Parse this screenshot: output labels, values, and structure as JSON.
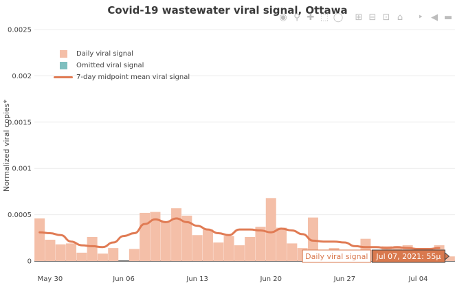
{
  "chart_data": {
    "type": "bar",
    "title": "Covid-19 wastewater viral signal, Ottawa",
    "ylabel": "Normalized viral copies*",
    "xlabel": "",
    "ylim": [
      0,
      0.0025
    ],
    "xlim": [
      "2021-05-29",
      "2021-07-07"
    ],
    "y_ticks": [
      {
        "value": 0,
        "label": "0"
      },
      {
        "value": 0.0005,
        "label": "0.0005"
      },
      {
        "value": 0.001,
        "label": "0.001"
      },
      {
        "value": 0.0015,
        "label": "0.0015"
      },
      {
        "value": 0.002,
        "label": "0.002"
      },
      {
        "value": 0.0025,
        "label": "0.0025"
      }
    ],
    "x_ticks": [
      {
        "date": "2021-05-30",
        "label": "May 30"
      },
      {
        "date": "2021-06-06",
        "label": "Jun 06"
      },
      {
        "date": "2021-06-13",
        "label": "Jun 13"
      },
      {
        "date": "2021-06-20",
        "label": "Jun 20"
      },
      {
        "date": "2021-06-27",
        "label": "Jun 27"
      },
      {
        "date": "2021-07-04",
        "label": "Jul 04"
      }
    ],
    "grid": true,
    "legend_position": "top-left",
    "colors": {
      "daily": "#f4bfa8",
      "omitted": "#7fbfbf",
      "mean": "#e07b54"
    },
    "series": [
      {
        "name": "Daily viral signal",
        "kind": "bar",
        "x": [
          "2021-05-29",
          "2021-05-30",
          "2021-05-31",
          "2021-06-01",
          "2021-06-02",
          "2021-06-03",
          "2021-06-04",
          "2021-06-05",
          "2021-06-07",
          "2021-06-08",
          "2021-06-09",
          "2021-06-10",
          "2021-06-11",
          "2021-06-12",
          "2021-06-13",
          "2021-06-14",
          "2021-06-15",
          "2021-06-16",
          "2021-06-17",
          "2021-06-18",
          "2021-06-19",
          "2021-06-20",
          "2021-06-21",
          "2021-06-22",
          "2021-06-23",
          "2021-06-24",
          "2021-06-25",
          "2021-06-26",
          "2021-06-27",
          "2021-06-28",
          "2021-06-29",
          "2021-06-30",
          "2021-07-01",
          "2021-07-02",
          "2021-07-03",
          "2021-07-04",
          "2021-07-05",
          "2021-07-06",
          "2021-07-07"
        ],
        "values": [
          0.00046,
          0.00023,
          0.00018,
          0.00019,
          9e-05,
          0.00026,
          8e-05,
          0.00014,
          0.00013,
          0.00052,
          0.00053,
          0.00043,
          0.00057,
          0.00049,
          0.00028,
          0.00034,
          0.0002,
          0.00027,
          0.00017,
          0.00026,
          0.00037,
          0.00068,
          0.00036,
          0.00019,
          0.00014,
          0.00047,
          0.00011,
          0.00014,
          9e-05,
          7e-05,
          0.00024,
          0.00012,
          0.00016,
          0.00015,
          0.00017,
          5e-05,
          0.00012,
          0.00017,
          5e-05
        ]
      },
      {
        "name": "Omitted viral signal",
        "kind": "bar",
        "x": [],
        "values": []
      },
      {
        "name": "7-day midpoint mean viral signal",
        "kind": "line",
        "x": [
          "2021-05-29",
          "2021-05-30",
          "2021-05-31",
          "2021-06-01",
          "2021-06-02",
          "2021-06-03",
          "2021-06-04",
          "2021-06-05",
          "2021-06-06",
          "2021-06-07",
          "2021-06-08",
          "2021-06-09",
          "2021-06-10",
          "2021-06-11",
          "2021-06-12",
          "2021-06-13",
          "2021-06-14",
          "2021-06-15",
          "2021-06-16",
          "2021-06-17",
          "2021-06-18",
          "2021-06-19",
          "2021-06-20",
          "2021-06-21",
          "2021-06-22",
          "2021-06-23",
          "2021-06-24",
          "2021-06-25",
          "2021-06-26",
          "2021-06-27",
          "2021-06-28",
          "2021-06-29",
          "2021-06-30",
          "2021-07-01",
          "2021-07-02",
          "2021-07-03",
          "2021-07-04",
          "2021-07-05",
          "2021-07-06"
        ],
        "values": [
          0.00031,
          0.0003,
          0.00028,
          0.00021,
          0.00017,
          0.00016,
          0.00015,
          0.0002,
          0.00027,
          0.0003,
          0.0004,
          0.00045,
          0.00042,
          0.00046,
          0.00042,
          0.00038,
          0.00034,
          0.0003,
          0.00028,
          0.00034,
          0.00034,
          0.00033,
          0.00031,
          0.00035,
          0.00033,
          0.00029,
          0.00022,
          0.00021,
          0.00021,
          0.0002,
          0.00016,
          0.00015,
          0.00015,
          0.00014,
          0.00015,
          0.00014,
          0.00013,
          0.00013,
          0.00014
        ]
      }
    ],
    "hover": {
      "series_label": "Daily viral signal",
      "value_label": "Jul 07, 2021: 55μ"
    }
  },
  "modebar": {
    "icons": [
      "camera-icon",
      "zoom-icon",
      "pan-icon",
      "box-select-icon",
      "lasso-select-icon",
      "zoom-in-icon",
      "zoom-out-icon",
      "autoscale-icon",
      "home-icon",
      "spike-lines-icon",
      "hover-closest-icon",
      "hover-compare-icon"
    ]
  }
}
